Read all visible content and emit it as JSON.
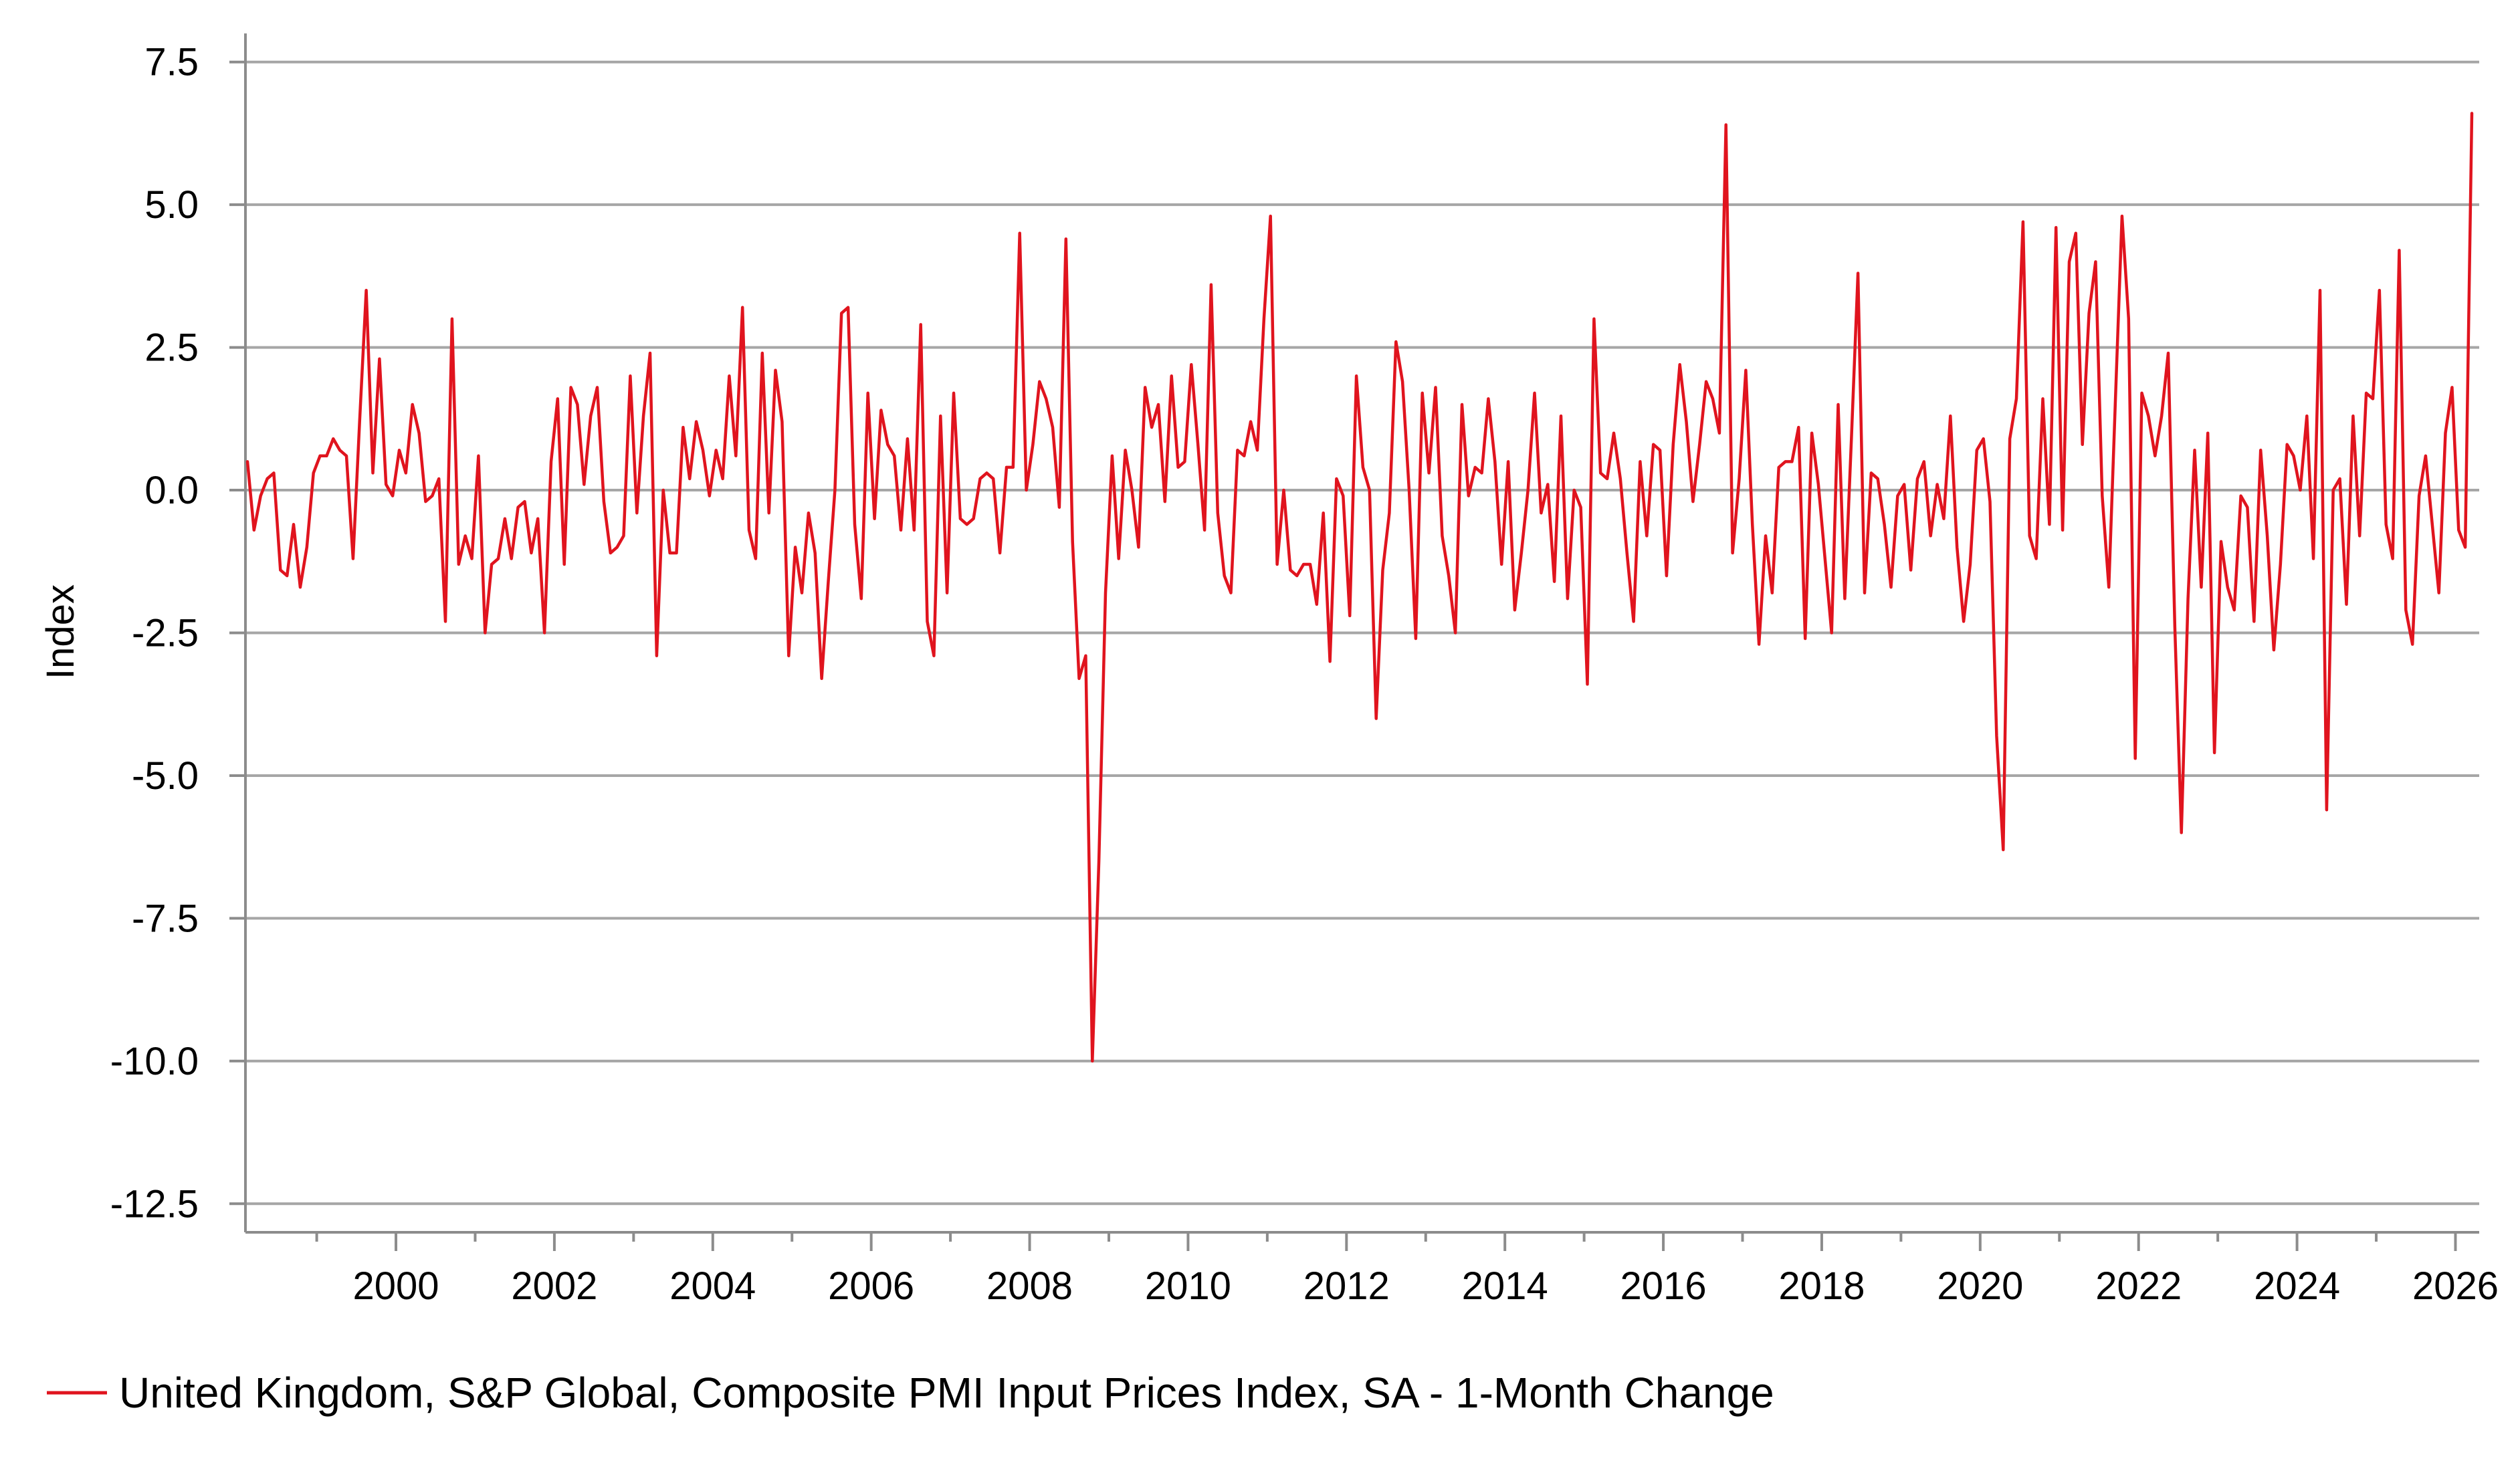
{
  "chart_data": {
    "type": "line",
    "title": "",
    "xlabel": "",
    "ylabel": "Index",
    "ylim": [
      -13.0,
      8.0
    ],
    "xlim": [
      1998.1,
      2026.3
    ],
    "yticks": [
      7.5,
      5.0,
      2.5,
      0.0,
      -2.5,
      -5.0,
      -7.5,
      -10.0,
      -12.5
    ],
    "ytick_labels": [
      "7.5",
      "5.0",
      "2.5",
      "0.0",
      "-2.5",
      "-5.0",
      "-7.5",
      "-10.0",
      "-12.5"
    ],
    "xticks": [
      2000,
      2002,
      2004,
      2006,
      2008,
      2010,
      2012,
      2014,
      2016,
      2018,
      2020,
      2022,
      2024,
      2026
    ],
    "xtick_labels": [
      "2000",
      "2002",
      "2004",
      "2006",
      "2008",
      "2010",
      "2012",
      "2014",
      "2016",
      "2018",
      "2020",
      "2022",
      "2024",
      "2026"
    ],
    "grid": true,
    "legend_position": "bottom-left",
    "series": [
      {
        "name": "United Kingdom, S&P Global, Composite PMI Input Prices Index, SA - 1-Month Change",
        "color": "#e0141e",
        "start_year": 1998.125,
        "step_years": 0.08333,
        "values": [
          0.5,
          -0.7,
          -0.1,
          0.2,
          0.3,
          -1.4,
          -1.5,
          -0.6,
          -1.7,
          -1.0,
          0.3,
          0.6,
          0.6,
          0.9,
          0.7,
          0.6,
          -1.2,
          1.2,
          3.5,
          0.3,
          2.3,
          0.1,
          -0.1,
          0.7,
          0.3,
          1.5,
          1.0,
          -0.2,
          -0.1,
          0.2,
          -2.3,
          3.0,
          -1.3,
          -0.8,
          -1.2,
          0.6,
          -2.5,
          -1.3,
          -1.2,
          -0.5,
          -1.2,
          -0.3,
          -0.2,
          -1.1,
          -0.5,
          -2.5,
          0.5,
          1.6,
          -1.3,
          1.8,
          1.5,
          0.1,
          1.3,
          1.8,
          -0.2,
          -1.1,
          -1.0,
          -0.8,
          2.0,
          -0.4,
          1.3,
          2.4,
          -2.9,
          0.0,
          -1.1,
          -1.1,
          1.1,
          0.2,
          1.2,
          0.7,
          -0.1,
          0.7,
          0.2,
          2.0,
          0.6,
          3.2,
          -0.7,
          -1.2,
          2.4,
          -0.4,
          2.1,
          1.2,
          -2.9,
          -1.0,
          -1.8,
          -0.4,
          -1.1,
          -3.3,
          -1.6,
          0.0,
          3.1,
          3.2,
          -0.6,
          -1.9,
          1.7,
          -0.5,
          1.4,
          0.8,
          0.6,
          -0.7,
          0.9,
          -0.7,
          2.9,
          -2.3,
          -2.9,
          1.3,
          -1.8,
          1.7,
          -0.5,
          -0.6,
          -0.5,
          0.2,
          0.3,
          0.2,
          -1.1,
          0.4,
          0.4,
          4.5,
          0.0,
          0.8,
          1.9,
          1.6,
          1.1,
          -0.3,
          4.4,
          -0.9,
          -3.3,
          -2.9,
          -10.0,
          -6.5,
          -1.8,
          0.6,
          -1.2,
          0.7,
          0.0,
          -1.0,
          1.8,
          1.1,
          1.5,
          -0.2,
          2.0,
          0.4,
          0.5,
          2.2,
          0.8,
          -0.7,
          3.6,
          -0.4,
          -1.5,
          -1.8,
          0.7,
          0.6,
          1.2,
          0.7,
          3.0,
          4.8,
          -1.3,
          0.0,
          -1.4,
          -1.5,
          -1.3,
          -1.3,
          -2.0,
          -0.4,
          -3.0,
          0.2,
          -0.1,
          -2.2,
          2.0,
          0.4,
          0.0,
          -4.0,
          -1.4,
          -0.4,
          2.6,
          1.9,
          0.0,
          -2.6,
          1.7,
          0.3,
          1.8,
          -0.8,
          -1.5,
          -2.5,
          1.5,
          -0.1,
          0.4,
          0.3,
          1.6,
          0.5,
          -1.3,
          0.5,
          -2.1,
          -1.1,
          0.0,
          1.7,
          -0.4,
          0.1,
          -1.6,
          1.3,
          -1.9,
          0.0,
          -0.3,
          -3.4,
          3.0,
          0.3,
          0.2,
          1.0,
          0.2,
          -1.1,
          -2.3,
          0.5,
          -0.8,
          0.8,
          0.7,
          -1.5,
          0.8,
          2.2,
          1.2,
          -0.2,
          0.8,
          1.9,
          1.6,
          1.0,
          6.4,
          -1.1,
          0.2,
          2.1,
          -0.6,
          -2.7,
          -0.8,
          -1.8,
          0.4,
          0.5,
          0.5,
          1.1,
          -2.6,
          1.0,
          0.1,
          -1.2,
          -2.5,
          1.5,
          -1.9,
          0.9,
          3.8,
          -1.8,
          0.3,
          0.2,
          -0.6,
          -1.7,
          -0.1,
          0.1,
          -1.4,
          0.2,
          0.5,
          -0.8,
          0.1,
          -0.5,
          1.3,
          -1.0,
          -2.3,
          -1.3,
          0.7,
          0.9,
          -0.2,
          -4.3,
          -6.3,
          0.9,
          1.6,
          4.7,
          -0.8,
          -1.2,
          1.6,
          -0.6,
          4.6,
          -0.7,
          4.0,
          4.5,
          0.8,
          3.1,
          4.0,
          -0.1,
          -1.7,
          1.6,
          4.8,
          3.0,
          -4.7,
          1.7,
          1.3,
          0.6,
          1.3,
          2.4,
          -2.4,
          -6.0,
          -1.9,
          0.7,
          -1.7,
          1.0,
          -4.6,
          -0.9,
          -1.7,
          -2.1,
          -0.1,
          -0.3,
          -2.3,
          0.7,
          -0.8,
          -2.8,
          -1.3,
          0.8,
          0.6,
          0.0,
          1.3,
          -1.2,
          3.5,
          -5.6,
          0.0,
          0.2,
          -2.0,
          1.3,
          -0.8,
          1.7,
          1.6,
          3.5,
          -0.6,
          -1.2,
          4.2,
          -2.1,
          -2.7,
          -0.1,
          0.6,
          -0.6,
          -1.8,
          1.0,
          1.8,
          -0.7,
          -1.0,
          6.6
        ]
      }
    ]
  }
}
